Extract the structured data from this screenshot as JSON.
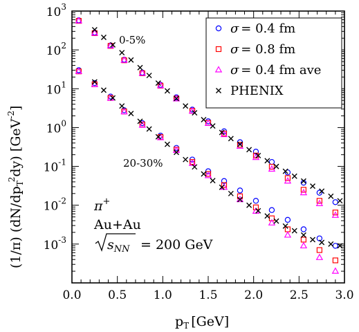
{
  "chart_data": {
    "type": "scatter",
    "xlabel": "p",
    "xlabel_sub": "T",
    "xlabel_unit": "[GeV]",
    "ylabel": "(1/π) (dN/dp",
    "ylabel_sub": "T",
    "ylabel_sup": "2",
    "ylabel_end": "dy) [GeV",
    "ylabel_unit_sup": "-2",
    "ylabel_close": "]",
    "xlim": [
      0,
      3.0
    ],
    "ylim": [
      0.0001,
      1000
    ],
    "yscale": "log",
    "xticks": [
      "0.0",
      "0.5",
      "1.0",
      "1.5",
      "2.0",
      "2.5",
      "3.0"
    ],
    "yticks": [
      {
        "base": "10",
        "exp": "3"
      },
      {
        "base": "10",
        "exp": "2"
      },
      {
        "base": "10",
        "exp": "1"
      },
      {
        "base": "10",
        "exp": "0"
      },
      {
        "base": "10",
        "exp": "-1"
      },
      {
        "base": "10",
        "exp": "-2"
      },
      {
        "base": "10",
        "exp": "-3"
      }
    ],
    "annotations": {
      "central": "0-5%",
      "peripheral": "20-30%",
      "particle": "π",
      "particle_sup": "+",
      "system": "Au+Au",
      "energy_sym": "s",
      "energy_sub": "NN",
      "energy_val": "= 200 GeV"
    },
    "legend": {
      "placement": "top-right",
      "entries": [
        {
          "sym": "σ",
          "text": "= 0.4 fm",
          "marker": "circle",
          "color": "#0000ff"
        },
        {
          "sym": "σ",
          "text": "= 0.8 fm",
          "marker": "square",
          "color": "#ff0000"
        },
        {
          "sym": "σ",
          "text": "= 0.4 fm ave",
          "marker": "triangle",
          "color": "#ff00ff"
        },
        {
          "sym": "",
          "text": "PHENIX",
          "marker": "x",
          "color": "#000000"
        }
      ]
    },
    "model_x": [
      0.075,
      0.25,
      0.425,
      0.575,
      0.775,
      0.975,
      1.15,
      1.325,
      1.5,
      1.675,
      1.85,
      2.025,
      2.2,
      2.375,
      2.55,
      2.725,
      2.9
    ],
    "series": [
      {
        "name": "σ = 0.4 fm",
        "marker": "circle",
        "color": "#0000ff",
        "group": "0-5%",
        "y": [
          580,
          280,
          130,
          56,
          26,
          12.6,
          6.0,
          2.9,
          1.45,
          0.8,
          0.42,
          0.24,
          0.13,
          0.07,
          0.038,
          0.021,
          0.012
        ]
      },
      {
        "name": "σ = 0.8 fm",
        "marker": "square",
        "color": "#ff0000",
        "group": "0-5%",
        "y": [
          560,
          270,
          127,
          54,
          25,
          12.0,
          5.6,
          2.7,
          1.32,
          0.7,
          0.36,
          0.19,
          0.098,
          0.05,
          0.025,
          0.013,
          0.0065
        ]
      },
      {
        "name": "σ = 0.4 fm ave",
        "marker": "triangle",
        "color": "#ff00ff",
        "group": "0-5%",
        "y": [
          560,
          270,
          127,
          54,
          25,
          12.0,
          5.5,
          2.65,
          1.28,
          0.66,
          0.33,
          0.17,
          0.085,
          0.042,
          0.021,
          0.011,
          0.0055
        ]
      },
      {
        "name": "σ = 0.4 fm",
        "marker": "circle",
        "color": "#0000ff",
        "group": "20-30%",
        "y": [
          30,
          14.0,
          6.3,
          2.8,
          1.3,
          0.62,
          0.3,
          0.15,
          0.075,
          0.042,
          0.024,
          0.013,
          0.0075,
          0.0042,
          0.0024,
          0.0014,
          0.0009
        ]
      },
      {
        "name": "σ = 0.8 fm",
        "marker": "square",
        "color": "#ff0000",
        "group": "20-30%",
        "y": [
          28,
          13.0,
          5.8,
          2.6,
          1.2,
          0.57,
          0.27,
          0.13,
          0.064,
          0.033,
          0.017,
          0.0088,
          0.0046,
          0.0024,
          0.0013,
          0.0007,
          0.00038
        ]
      },
      {
        "name": "σ = 0.4 fm ave",
        "marker": "triangle",
        "color": "#ff00ff",
        "group": "20-30%",
        "y": [
          28,
          12.8,
          5.7,
          2.55,
          1.15,
          0.55,
          0.26,
          0.12,
          0.058,
          0.029,
          0.014,
          0.007,
          0.0035,
          0.0017,
          0.0009,
          0.00045,
          0.0002
        ]
      },
      {
        "name": "PHENIX",
        "marker": "x",
        "color": "#000000",
        "group": "0-5%",
        "x": [
          0.25,
          0.35,
          0.45,
          0.55,
          0.65,
          0.75,
          0.85,
          0.95,
          1.05,
          1.15,
          1.25,
          1.35,
          1.45,
          1.55,
          1.65,
          1.75,
          1.85,
          1.95,
          2.05,
          2.15,
          2.25,
          2.35,
          2.45,
          2.55,
          2.65,
          2.75,
          2.85,
          2.95
        ],
        "y": [
          330,
          210,
          135,
          85,
          55,
          35,
          22,
          14,
          8.8,
          5.6,
          3.6,
          2.4,
          1.6,
          1.1,
          0.75,
          0.52,
          0.37,
          0.27,
          0.19,
          0.14,
          0.1,
          0.075,
          0.056,
          0.042,
          0.031,
          0.023,
          0.017,
          0.013
        ]
      },
      {
        "name": "PHENIX",
        "marker": "x",
        "color": "#000000",
        "group": "20-30%",
        "x": [
          0.25,
          0.35,
          0.45,
          0.55,
          0.65,
          0.75,
          0.85,
          0.95,
          1.05,
          1.15,
          1.25,
          1.35,
          1.45,
          1.55,
          1.65,
          1.75,
          1.85,
          1.95,
          2.05,
          2.15,
          2.25,
          2.35,
          2.45,
          2.55,
          2.65,
          2.75,
          2.85,
          2.95
        ],
        "y": [
          15,
          9.2,
          5.8,
          3.6,
          2.3,
          1.45,
          0.92,
          0.58,
          0.37,
          0.23,
          0.15,
          0.097,
          0.064,
          0.043,
          0.029,
          0.02,
          0.014,
          0.01,
          0.0072,
          0.0053,
          0.0039,
          0.0029,
          0.0022,
          0.0017,
          0.0013,
          0.0011,
          0.001,
          0.0009
        ]
      }
    ]
  }
}
